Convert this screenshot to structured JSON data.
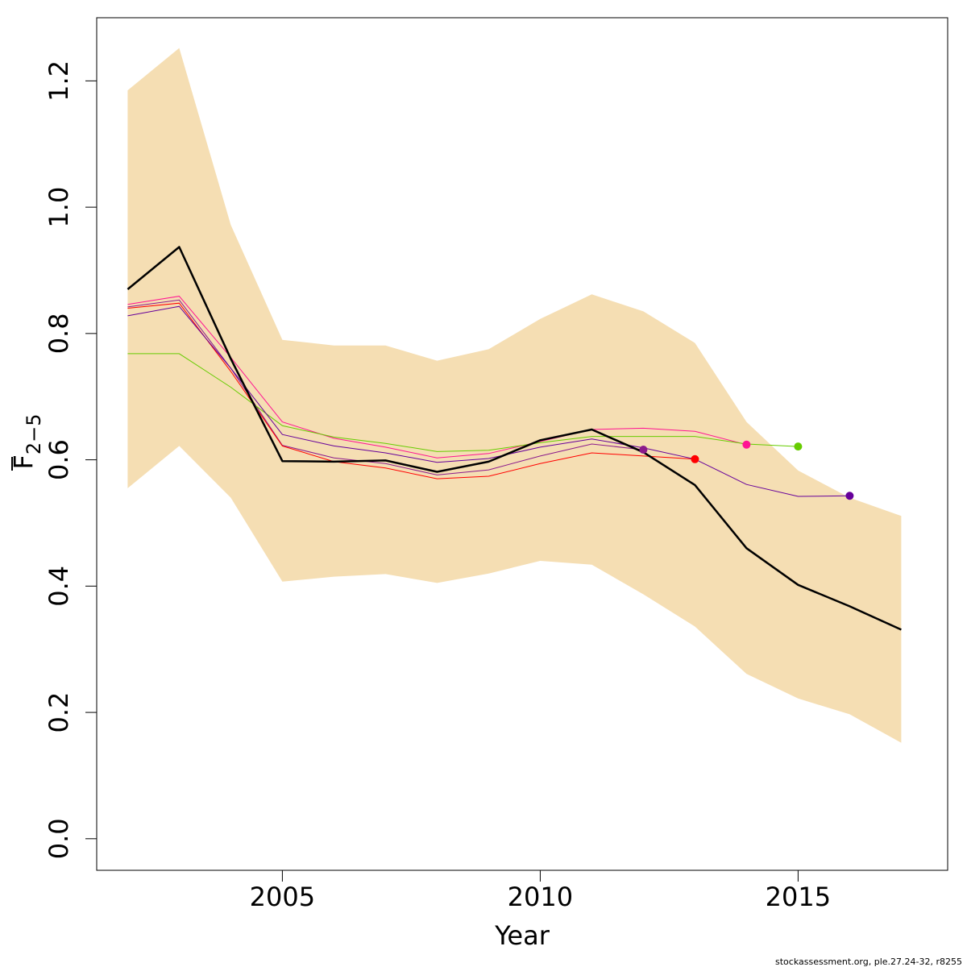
{
  "chart_data": {
    "type": "line",
    "xlabel": "Year",
    "ylabel_main": "F",
    "ylabel_sub": "2−5",
    "footer": "stockassessment.org, ple.27.24-32, r8255",
    "xlim": [
      2001.4,
      2017.9
    ],
    "ylim": [
      -0.05,
      1.3
    ],
    "x_ticks": [
      2005,
      2010,
      2015
    ],
    "y_ticks": [
      0.0,
      0.2,
      0.4,
      0.6,
      0.8,
      1.0,
      1.2
    ],
    "y_tick_labels": [
      "0.0",
      "0.2",
      "0.4",
      "0.6",
      "0.8",
      "1.0",
      "1.2"
    ],
    "band": {
      "color": "#f5deb3",
      "x": [
        2002,
        2003,
        2004,
        2005,
        2006,
        2007,
        2008,
        2009,
        2010,
        2011,
        2012,
        2013,
        2014,
        2015,
        2016,
        2017
      ],
      "upper": [
        1.185,
        1.252,
        0.972,
        0.79,
        0.781,
        0.781,
        0.757,
        0.775,
        0.823,
        0.862,
        0.835,
        0.785,
        0.66,
        0.583,
        0.54,
        0.511
      ],
      "lower": [
        0.555,
        0.622,
        0.54,
        0.407,
        0.415,
        0.419,
        0.405,
        0.42,
        0.44,
        0.434,
        0.387,
        0.336,
        0.261,
        0.222,
        0.197,
        0.152
      ]
    },
    "main_series": {
      "color": "#000000",
      "x": [
        2002,
        2003,
        2004,
        2005,
        2006,
        2007,
        2008,
        2009,
        2010,
        2011,
        2012,
        2013,
        2014,
        2015,
        2016,
        2017
      ],
      "values": [
        0.87,
        0.937,
        0.76,
        0.598,
        0.597,
        0.599,
        0.581,
        0.597,
        0.631,
        0.648,
        0.612,
        0.56,
        0.46,
        0.402,
        0.368,
        0.331
      ]
    },
    "series": [
      {
        "color": "#8b1a8b",
        "x": [
          2002,
          2003,
          2004,
          2005,
          2006,
          2007,
          2008,
          2009,
          2010,
          2011,
          2012
        ],
        "values": [
          0.842,
          0.853,
          0.745,
          0.623,
          0.603,
          0.594,
          0.576,
          0.584,
          0.606,
          0.625,
          0.616
        ]
      },
      {
        "color": "#ff0000",
        "x": [
          2002,
          2003,
          2004,
          2005,
          2006,
          2007,
          2008,
          2009,
          2010,
          2011,
          2012,
          2013
        ],
        "values": [
          0.84,
          0.848,
          0.74,
          0.622,
          0.597,
          0.587,
          0.57,
          0.574,
          0.594,
          0.611,
          0.606,
          0.601
        ]
      },
      {
        "color": "#ff1493",
        "x": [
          2002,
          2003,
          2004,
          2005,
          2006,
          2007,
          2008,
          2009,
          2010,
          2011,
          2012,
          2013,
          2014
        ],
        "values": [
          0.846,
          0.859,
          0.762,
          0.66,
          0.634,
          0.62,
          0.603,
          0.61,
          0.629,
          0.648,
          0.65,
          0.645,
          0.624
        ]
      },
      {
        "color": "#66cc00",
        "x": [
          2002,
          2003,
          2004,
          2005,
          2006,
          2007,
          2008,
          2009,
          2010,
          2011,
          2012,
          2013,
          2014,
          2015
        ],
        "values": [
          0.768,
          0.768,
          0.715,
          0.654,
          0.636,
          0.626,
          0.613,
          0.615,
          0.627,
          0.637,
          0.637,
          0.637,
          0.625,
          0.621
        ]
      },
      {
        "color": "#66009a",
        "x": [
          2002,
          2003,
          2004,
          2005,
          2006,
          2007,
          2008,
          2009,
          2010,
          2011,
          2012,
          2013,
          2014,
          2015,
          2016
        ],
        "values": [
          0.828,
          0.843,
          0.745,
          0.64,
          0.622,
          0.611,
          0.596,
          0.602,
          0.62,
          0.633,
          0.619,
          0.601,
          0.561,
          0.542,
          0.543
        ]
      }
    ]
  }
}
